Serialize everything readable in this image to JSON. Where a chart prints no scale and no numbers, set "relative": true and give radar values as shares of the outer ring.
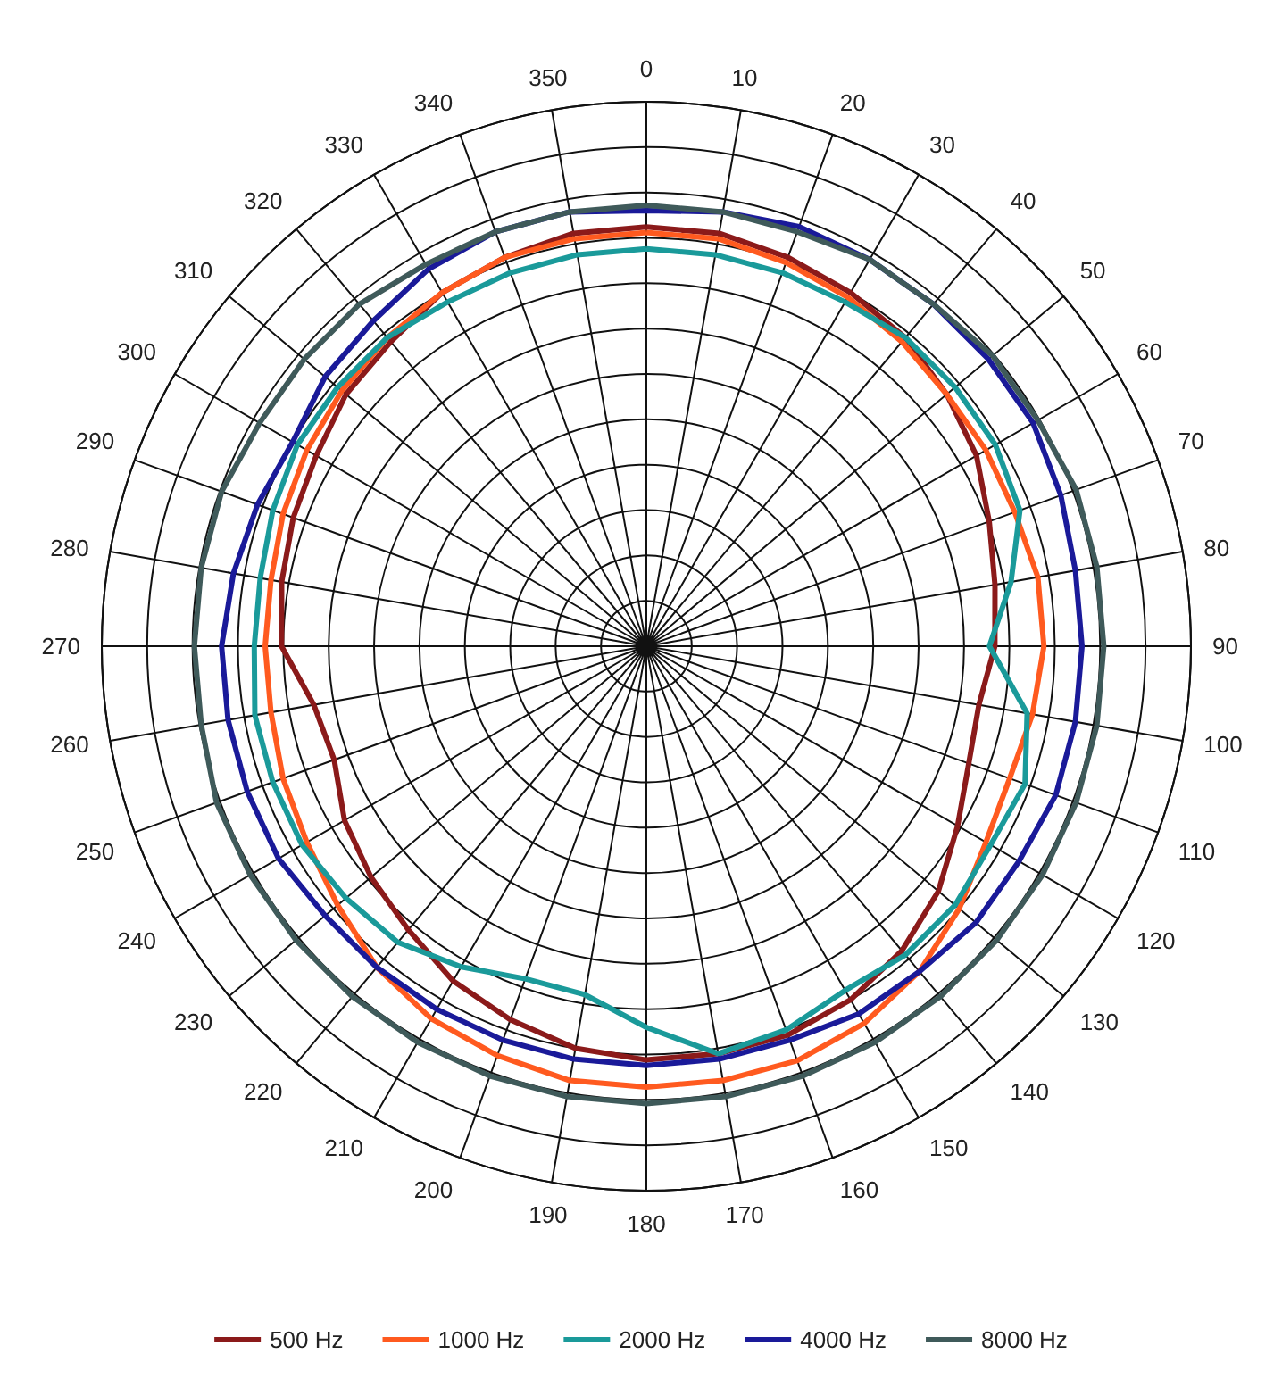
{
  "chart_data": {
    "type": "radar",
    "relative": true,
    "grid": true,
    "legend": "bottom",
    "marker": "none",
    "categories": [
      "0",
      "10",
      "20",
      "30",
      "40",
      "50",
      "60",
      "70",
      "80",
      "90",
      "100",
      "110",
      "120",
      "130",
      "140",
      "150",
      "160",
      "170",
      "180",
      "190",
      "200",
      "210",
      "220",
      "230",
      "240",
      "250",
      "260",
      "270",
      "280",
      "290",
      "300",
      "310",
      "320",
      "330",
      "340",
      "350"
    ],
    "series": [
      {
        "name": "500 Hz",
        "color": "#8b1a1a",
        "values": [
          0.77,
          0.77,
          0.76,
          0.75,
          0.74,
          0.72,
          0.7,
          0.67,
          0.65,
          0.64,
          0.62,
          0.63,
          0.66,
          0.7,
          0.73,
          0.75,
          0.76,
          0.76,
          0.76,
          0.75,
          0.73,
          0.71,
          0.68,
          0.66,
          0.64,
          0.61,
          0.62,
          0.67,
          0.68,
          0.69,
          0.7,
          0.72,
          0.73,
          0.75,
          0.76,
          0.77
        ]
      },
      {
        "name": "1000 Hz",
        "color": "#ff5a1f",
        "values": [
          0.76,
          0.76,
          0.75,
          0.74,
          0.73,
          0.72,
          0.72,
          0.72,
          0.73,
          0.73,
          0.72,
          0.71,
          0.72,
          0.75,
          0.78,
          0.8,
          0.81,
          0.81,
          0.81,
          0.81,
          0.8,
          0.79,
          0.77,
          0.74,
          0.72,
          0.71,
          0.7,
          0.7,
          0.7,
          0.71,
          0.72,
          0.73,
          0.74,
          0.75,
          0.76,
          0.76
        ]
      },
      {
        "name": "2000 Hz",
        "color": "#1a9a9a",
        "values": [
          0.73,
          0.73,
          0.73,
          0.73,
          0.74,
          0.74,
          0.74,
          0.73,
          0.68,
          0.63,
          0.71,
          0.74,
          0.73,
          0.74,
          0.74,
          0.73,
          0.75,
          0.76,
          0.7,
          0.65,
          0.65,
          0.68,
          0.71,
          0.72,
          0.73,
          0.73,
          0.73,
          0.72,
          0.72,
          0.73,
          0.74,
          0.74,
          0.74,
          0.73,
          0.73,
          0.73
        ]
      },
      {
        "name": "4000 Hz",
        "color": "#1a1a99",
        "values": [
          0.8,
          0.81,
          0.82,
          0.82,
          0.82,
          0.82,
          0.82,
          0.81,
          0.8,
          0.8,
          0.8,
          0.8,
          0.79,
          0.79,
          0.78,
          0.78,
          0.77,
          0.77,
          0.77,
          0.77,
          0.77,
          0.77,
          0.77,
          0.77,
          0.78,
          0.78,
          0.78,
          0.78,
          0.77,
          0.76,
          0.75,
          0.77,
          0.78,
          0.8,
          0.81,
          0.81
        ]
      },
      {
        "name": "8000 Hz",
        "color": "#3f5a5a",
        "values": [
          0.81,
          0.81,
          0.81,
          0.82,
          0.82,
          0.83,
          0.83,
          0.84,
          0.84,
          0.84,
          0.84,
          0.84,
          0.84,
          0.84,
          0.84,
          0.84,
          0.84,
          0.84,
          0.84,
          0.84,
          0.84,
          0.84,
          0.84,
          0.84,
          0.84,
          0.84,
          0.83,
          0.83,
          0.83,
          0.83,
          0.82,
          0.82,
          0.82,
          0.81,
          0.81,
          0.81
        ]
      }
    ]
  }
}
